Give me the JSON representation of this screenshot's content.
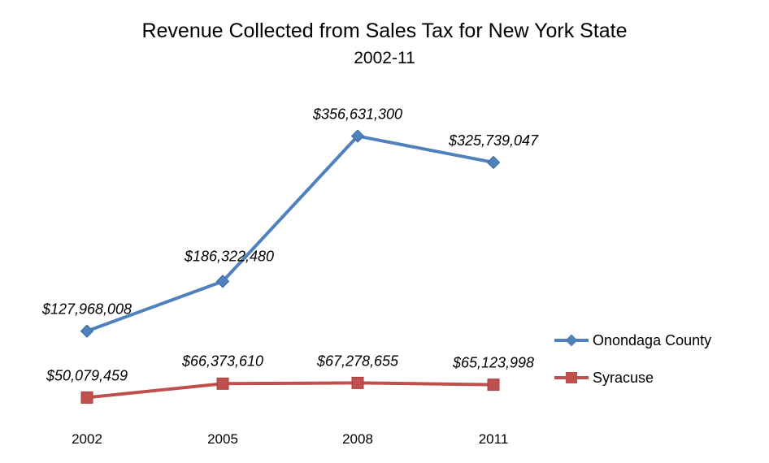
{
  "chart_data": {
    "type": "line",
    "title": "Revenue Collected from Sales Tax for New York State",
    "subtitle": "2002-11",
    "categories": [
      "2002",
      "2005",
      "2008",
      "2011"
    ],
    "series": [
      {
        "name": "Onondaga County",
        "values": [
          127968008,
          186322480,
          356631300,
          325739047
        ],
        "labels": [
          "$127,968,008",
          "$186,322,480",
          "$356,631,300",
          "$325,739,047"
        ],
        "color": "#4f81bd",
        "marker": "diamond"
      },
      {
        "name": "Syracuse",
        "values": [
          50079459,
          66373610,
          67278655,
          65123998
        ],
        "labels": [
          "$50,079,459",
          "$66,373,610",
          "$67,278,655",
          "$65,123,998"
        ],
        "color": "#c0504d",
        "marker": "square"
      }
    ],
    "xlabel": "",
    "ylabel": "",
    "ylim": [
      0,
      400000000
    ],
    "grid": false,
    "legend": "right"
  }
}
